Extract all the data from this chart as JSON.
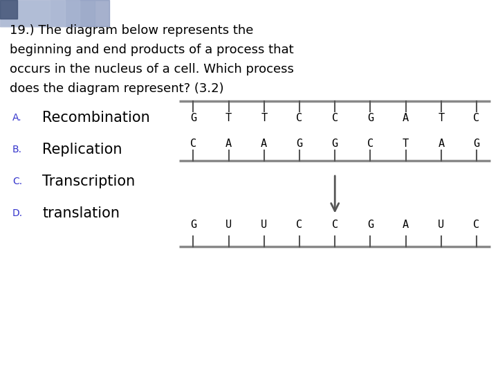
{
  "title_lines": [
    "19.) The diagram below represents the",
    "beginning and end products of a process that",
    "occurs in the nucleus of a cell. Which process",
    "does the diagram represent? (3.2)"
  ],
  "options": [
    [
      "A.",
      "Recombination"
    ],
    [
      "B.",
      "Replication"
    ],
    [
      "C.",
      "Transcription"
    ],
    [
      "D.",
      "translation"
    ]
  ],
  "dna_top_strand1": [
    "G",
    "T",
    "T",
    "C",
    "C",
    "G",
    "A",
    "T",
    "C"
  ],
  "dna_top_strand2": [
    "C",
    "A",
    "A",
    "G",
    "G",
    "C",
    "T",
    "A",
    "G"
  ],
  "rna_strand": [
    "G",
    "U",
    "U",
    "C",
    "C",
    "G",
    "A",
    "U",
    "C"
  ],
  "bg_color": "#ffffff",
  "text_color": "#000000",
  "label_color": "#3333cc",
  "strand_color": "#888888",
  "tick_color": "#555555",
  "arrow_color": "#555555",
  "font_size_title": 13,
  "font_size_option_label": 10,
  "font_size_option_text": 15,
  "font_size_strand": 11,
  "grad_colors": [
    "#8090b8",
    "#9aa8c8",
    "#b0bcd8",
    "#c8d0e4",
    "#dde4f0"
  ],
  "grad_alphas": [
    0.7,
    0.55,
    0.4,
    0.25,
    0.1
  ]
}
